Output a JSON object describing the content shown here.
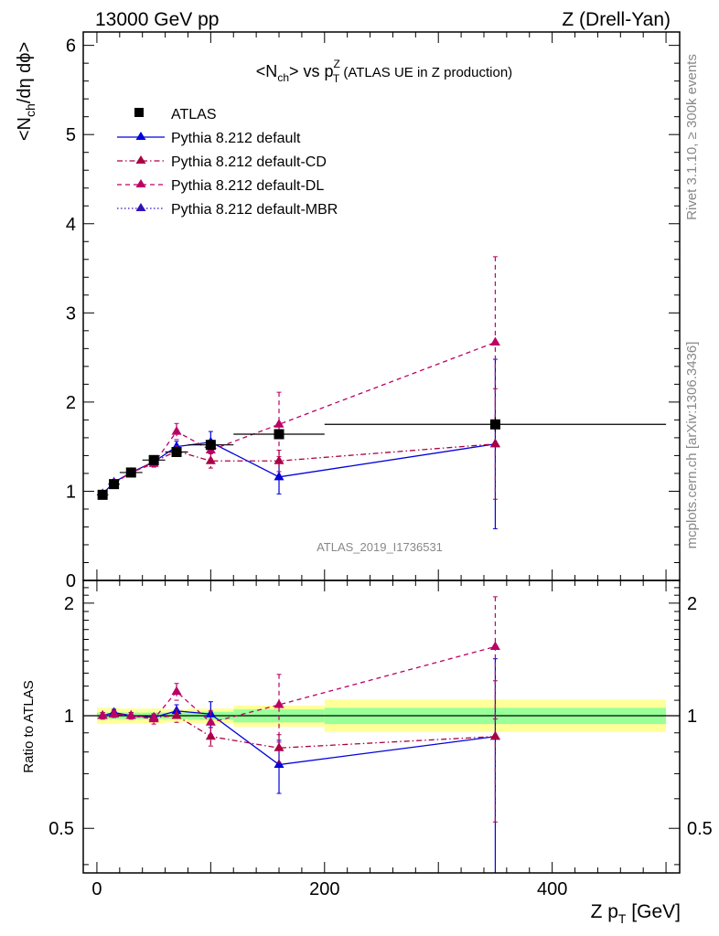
{
  "header": {
    "left": "13000 GeV pp",
    "right": "Z (Drell-Yan)"
  },
  "side": {
    "rivet": "Rivet 3.1.10, ≥ 300k events",
    "mcplots": "mcplots.cern.ch [arXiv:1306.3436]"
  },
  "analysis_id": "ATLAS_2019_I1736531",
  "chart_data": [
    {
      "type": "scatter",
      "panel": "main",
      "title_parts": {
        "prefix": "<N",
        "sub1": "ch",
        "mid": "> vs p",
        "sup": "Z",
        "sub2": "T",
        "suffix": " (ATLAS UE in Z production)"
      },
      "ylabel_parts": {
        "prefix": "<N",
        "sub": "ch",
        "suffix": "/dη dϕ>"
      },
      "ylim": [
        0,
        6.15
      ],
      "xlim": [
        -12,
        512
      ],
      "yticks": [
        0,
        1,
        2,
        3,
        4,
        5,
        6
      ],
      "grid": false,
      "legend_position": "top-left",
      "series": [
        {
          "name": "ATLAS",
          "style": "data",
          "color": "#000000",
          "marker": "square",
          "points": [
            {
              "x": 5,
              "y": 0.96,
              "xerr": 5,
              "yerr": 0.02
            },
            {
              "x": 15,
              "y": 1.08,
              "xerr": 5,
              "yerr": 0.02
            },
            {
              "x": 30,
              "y": 1.21,
              "xerr": 10,
              "yerr": 0.02
            },
            {
              "x": 50,
              "y": 1.35,
              "xerr": 10,
              "yerr": 0.02
            },
            {
              "x": 70,
              "y": 1.44,
              "xerr": 10,
              "yerr": 0.03
            },
            {
              "x": 100,
              "y": 1.52,
              "xerr": 20,
              "yerr": 0.03
            },
            {
              "x": 160,
              "y": 1.64,
              "xerr": 40,
              "yerr": 0.05
            },
            {
              "x": 350,
              "y": 1.75,
              "xerr": 150,
              "yerr": 0.08
            }
          ]
        },
        {
          "name": "Pythia 8.212 default",
          "style": "solid",
          "color": "#0000dd",
          "marker": "triangle",
          "points": [
            {
              "x": 5,
              "y": 0.97,
              "yerr": 0.02
            },
            {
              "x": 15,
              "y": 1.1,
              "yerr": 0.02
            },
            {
              "x": 30,
              "y": 1.21,
              "yerr": 0.02
            },
            {
              "x": 50,
              "y": 1.33,
              "yerr": 0.03
            },
            {
              "x": 70,
              "y": 1.5,
              "yerr": 0.06
            },
            {
              "x": 100,
              "y": 1.55,
              "yerr": 0.12
            },
            {
              "x": 160,
              "y": 1.16,
              "yerr": 0.19
            },
            {
              "x": 350,
              "y": 1.53,
              "yerr": 0.95
            }
          ]
        },
        {
          "name": "Pythia 8.212 default-CD",
          "style": "dashdot",
          "color": "#aa0044",
          "marker": "triangle",
          "points": [
            {
              "x": 5,
              "y": 0.97,
              "yerr": 0.02
            },
            {
              "x": 15,
              "y": 1.09,
              "yerr": 0.02
            },
            {
              "x": 30,
              "y": 1.21,
              "yerr": 0.02
            },
            {
              "x": 50,
              "y": 1.33,
              "yerr": 0.03
            },
            {
              "x": 70,
              "y": 1.45,
              "yerr": 0.06
            },
            {
              "x": 100,
              "y": 1.34,
              "yerr": 0.08
            },
            {
              "x": 160,
              "y": 1.34,
              "yerr": 0.12
            },
            {
              "x": 350,
              "y": 1.53,
              "yerr": 0.62
            }
          ]
        },
        {
          "name": "Pythia 8.212 default-DL",
          "style": "dashed",
          "color": "#bb0066",
          "marker": "triangle",
          "points": [
            {
              "x": 5,
              "y": 0.97,
              "yerr": 0.02
            },
            {
              "x": 15,
              "y": 1.09,
              "yerr": 0.02
            },
            {
              "x": 30,
              "y": 1.21,
              "yerr": 0.02
            },
            {
              "x": 50,
              "y": 1.31,
              "yerr": 0.04
            },
            {
              "x": 70,
              "y": 1.67,
              "yerr": 0.09
            },
            {
              "x": 100,
              "y": 1.46,
              "yerr": 0.1
            },
            {
              "x": 160,
              "y": 1.75,
              "yerr": 0.36
            },
            {
              "x": 350,
              "y": 2.67,
              "yerr": 0.96
            }
          ]
        },
        {
          "name": "Pythia 8.212 default-MBR",
          "style": "dotted",
          "color": "#3311bb",
          "marker": "triangle",
          "points": []
        }
      ]
    },
    {
      "type": "scatter",
      "panel": "ratio",
      "ylabel": "Ratio to ATLAS",
      "xlabel_parts": {
        "prefix": "Z p",
        "sub": "T",
        "suffix": " [GeV]"
      },
      "xlim": [
        -12,
        512
      ],
      "ylim": [
        0.38,
        2.3
      ],
      "yticks": [
        0.5,
        1,
        2
      ],
      "xticks": [
        0,
        200,
        400
      ],
      "bands": [
        {
          "x0": 0,
          "x1": 10,
          "yellow": [
            0.95,
            1.05
          ],
          "green": [
            0.98,
            1.02
          ]
        },
        {
          "x0": 10,
          "x1": 20,
          "yellow": [
            0.95,
            1.05
          ],
          "green": [
            0.98,
            1.02
          ]
        },
        {
          "x0": 20,
          "x1": 40,
          "yellow": [
            0.955,
            1.045
          ],
          "green": [
            0.98,
            1.02
          ]
        },
        {
          "x0": 40,
          "x1": 60,
          "yellow": [
            0.955,
            1.045
          ],
          "green": [
            0.98,
            1.02
          ]
        },
        {
          "x0": 60,
          "x1": 80,
          "yellow": [
            0.96,
            1.04
          ],
          "green": [
            0.98,
            1.02
          ]
        },
        {
          "x0": 80,
          "x1": 120,
          "yellow": [
            0.955,
            1.045
          ],
          "green": [
            0.975,
            1.025
          ]
        },
        {
          "x0": 120,
          "x1": 200,
          "yellow": [
            0.935,
            1.065
          ],
          "green": [
            0.96,
            1.04
          ]
        },
        {
          "x0": 200,
          "x1": 500,
          "yellow": [
            0.905,
            1.105
          ],
          "green": [
            0.95,
            1.05
          ]
        }
      ],
      "series": [
        {
          "name": "Pythia 8.212 default",
          "style": "solid",
          "color": "#0000dd",
          "points": [
            {
              "x": 5,
              "y": 1.0,
              "yerr": 0.02
            },
            {
              "x": 15,
              "y": 1.02,
              "yerr": 0.02
            },
            {
              "x": 30,
              "y": 1.0,
              "yerr": 0.02
            },
            {
              "x": 50,
              "y": 0.99,
              "yerr": 0.02
            },
            {
              "x": 70,
              "y": 1.03,
              "yerr": 0.04
            },
            {
              "x": 100,
              "y": 1.01,
              "yerr": 0.08
            },
            {
              "x": 160,
              "y": 0.74,
              "yerr": 0.12
            },
            {
              "x": 350,
              "y": 0.88,
              "yerr": 0.54
            }
          ]
        },
        {
          "name": "Pythia 8.212 default-CD",
          "style": "dashdot",
          "color": "#aa0044",
          "points": [
            {
              "x": 5,
              "y": 1.0,
              "yerr": 0.02
            },
            {
              "x": 15,
              "y": 1.01,
              "yerr": 0.02
            },
            {
              "x": 30,
              "y": 1.0,
              "yerr": 0.02
            },
            {
              "x": 50,
              "y": 0.99,
              "yerr": 0.02
            },
            {
              "x": 70,
              "y": 1.0,
              "yerr": 0.04
            },
            {
              "x": 100,
              "y": 0.88,
              "yerr": 0.05
            },
            {
              "x": 160,
              "y": 0.82,
              "yerr": 0.07
            },
            {
              "x": 350,
              "y": 0.88,
              "yerr": 0.36
            }
          ]
        },
        {
          "name": "Pythia 8.212 default-DL",
          "style": "dashed",
          "color": "#bb0066",
          "points": [
            {
              "x": 5,
              "y": 1.0,
              "yerr": 0.02
            },
            {
              "x": 15,
              "y": 1.01,
              "yerr": 0.02
            },
            {
              "x": 30,
              "y": 1.0,
              "yerr": 0.02
            },
            {
              "x": 50,
              "y": 0.98,
              "yerr": 0.03
            },
            {
              "x": 70,
              "y": 1.16,
              "yerr": 0.06
            },
            {
              "x": 100,
              "y": 0.96,
              "yerr": 0.07
            },
            {
              "x": 160,
              "y": 1.07,
              "yerr": 0.22
            },
            {
              "x": 350,
              "y": 1.53,
              "yerr": 0.55
            }
          ]
        }
      ]
    }
  ]
}
